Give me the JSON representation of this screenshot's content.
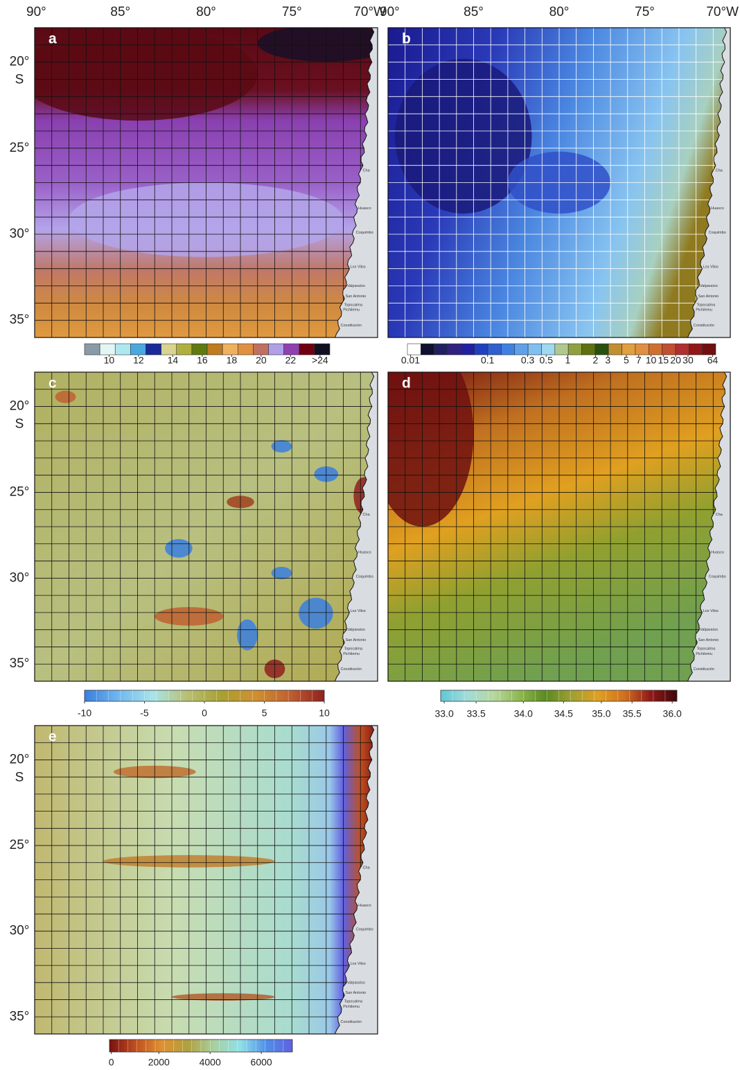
{
  "top_axis": {
    "labels": [
      "90°",
      "85°",
      "80°",
      "75°",
      "70°W"
    ]
  },
  "lat_axis": {
    "labels": [
      "20°",
      "25°",
      "30°",
      "35°"
    ],
    "hemisphere": "S"
  },
  "place_names": [
    "Cha",
    "Huasco",
    "Coquimbo",
    "Los Vilos",
    "Valparaíso",
    "San Antonio",
    "Topocalma",
    "Pichilemu",
    "Constitución"
  ],
  "panels": [
    {
      "letter": "a",
      "colorbar": {
        "labels": [
          "10",
          "12",
          "14",
          "16",
          "18",
          "20",
          "22",
          ">24"
        ],
        "colors": [
          "#8a9aa8",
          "#e4f6f4",
          "#aee8ee",
          "#4aa8e0",
          "#1a2a9a",
          "#d8d490",
          "#b0b040",
          "#607a10",
          "#c07a20",
          "#f0b060",
          "#e09040",
          "#c07060",
          "#b0a0e8",
          "#9040b0",
          "#700010",
          "#101020"
        ]
      }
    },
    {
      "letter": "b",
      "colorbar": {
        "labels": [
          "0.01",
          "0.1",
          "0.3",
          "0.5",
          "1",
          "2",
          "3",
          "5",
          "7",
          "10",
          "15",
          "20",
          "30",
          "64"
        ],
        "colors": [
          "#ffffff",
          "#101030",
          "#202060",
          "#302080",
          "#2020a0",
          "#2040c0",
          "#3060d0",
          "#4080e0",
          "#60a0e8",
          "#80c0f0",
          "#a0d8f0",
          "#b0c890",
          "#90a040",
          "#607010",
          "#2a5010",
          "#c09030",
          "#e0a040",
          "#e09040",
          "#d07030",
          "#c05030",
          "#b03030",
          "#901818",
          "#701010"
        ]
      }
    },
    {
      "letter": "c",
      "colorbar": {
        "labels": [
          "-10",
          "-5",
          "0",
          "5",
          "10"
        ],
        "colors": [
          "#3a7fe0",
          "#70b8f0",
          "#a8e4ea",
          "#b8c070",
          "#a8a030",
          "#d09030",
          "#c06030",
          "#902020"
        ]
      }
    },
    {
      "letter": "d",
      "colorbar": {
        "labels": [
          "33.0",
          "33.5",
          "34.0",
          "34.5",
          "35.0",
          "35.5",
          "36.0"
        ],
        "colors": [
          "#60c8d8",
          "#a0dcd8",
          "#b8d8a0",
          "#90b850",
          "#5a8a20",
          "#a0a030",
          "#e0a020",
          "#d07020",
          "#901818",
          "#400808"
        ]
      }
    },
    {
      "letter": "e",
      "colorbar": {
        "labels": [
          "0",
          "2000",
          "4000",
          "6000"
        ],
        "colors": [
          "#7a1010",
          "#c05020",
          "#e09030",
          "#b0a040",
          "#a8d0a0",
          "#90e0e8",
          "#5090e8",
          "#6060e0"
        ]
      }
    }
  ]
}
